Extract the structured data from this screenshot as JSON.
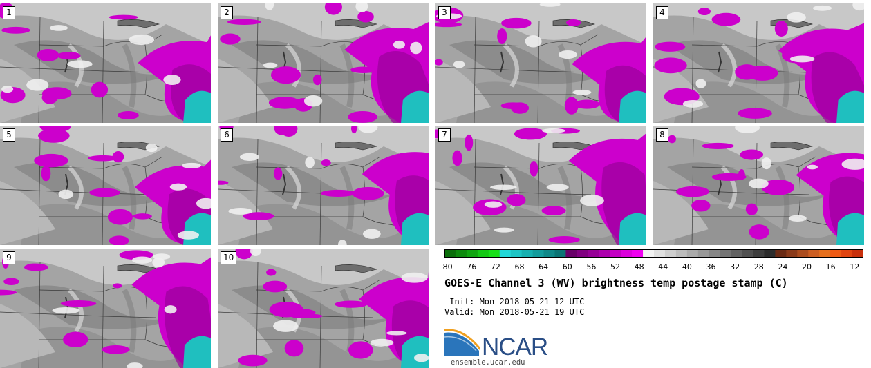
{
  "panels": [
    {
      "label": "1"
    },
    {
      "label": "2"
    },
    {
      "label": "3"
    },
    {
      "label": "4"
    },
    {
      "label": "5"
    },
    {
      "label": "6"
    },
    {
      "label": "7"
    },
    {
      "label": "8"
    },
    {
      "label": "9"
    },
    {
      "label": "10"
    }
  ],
  "colorbar": {
    "ticks": [
      "−80",
      "−76",
      "−72",
      "−68",
      "−64",
      "−60",
      "−56",
      "−52",
      "−48",
      "−44",
      "−40",
      "−36",
      "−32",
      "−28",
      "−24",
      "−20",
      "−16",
      "−12"
    ],
    "colors": [
      "#0a6e0a",
      "#0d8a0d",
      "#10a510",
      "#14c814",
      "#18e018",
      "#22d8d8",
      "#1cc4c4",
      "#17b0b0",
      "#139c9c",
      "#0f8888",
      "#0a7474",
      "#680068",
      "#800080",
      "#960096",
      "#ad00ad",
      "#c400c4",
      "#dc00dc",
      "#f000f0",
      "#f2f2f2",
      "#e0e0e0",
      "#cecece",
      "#bcbcbc",
      "#aaaaaa",
      "#989898",
      "#868686",
      "#747474",
      "#626262",
      "#505050",
      "#3e3e3e",
      "#2c2c2c",
      "#6a2a14",
      "#8a3a1a",
      "#ab4c1e",
      "#cc5e22",
      "#e6701e",
      "#ee5a14",
      "#e04410",
      "#c8300c"
    ]
  },
  "title": "GOES-E Channel 3 (WV) brightness temp postage stamp (C)",
  "init": " Init: Mon 2018-05-21 12 UTC",
  "valid": "Valid: Mon 2018-05-21 19 UTC",
  "logo_text": "NCAR",
  "site": "ensemble.ucar.edu"
}
